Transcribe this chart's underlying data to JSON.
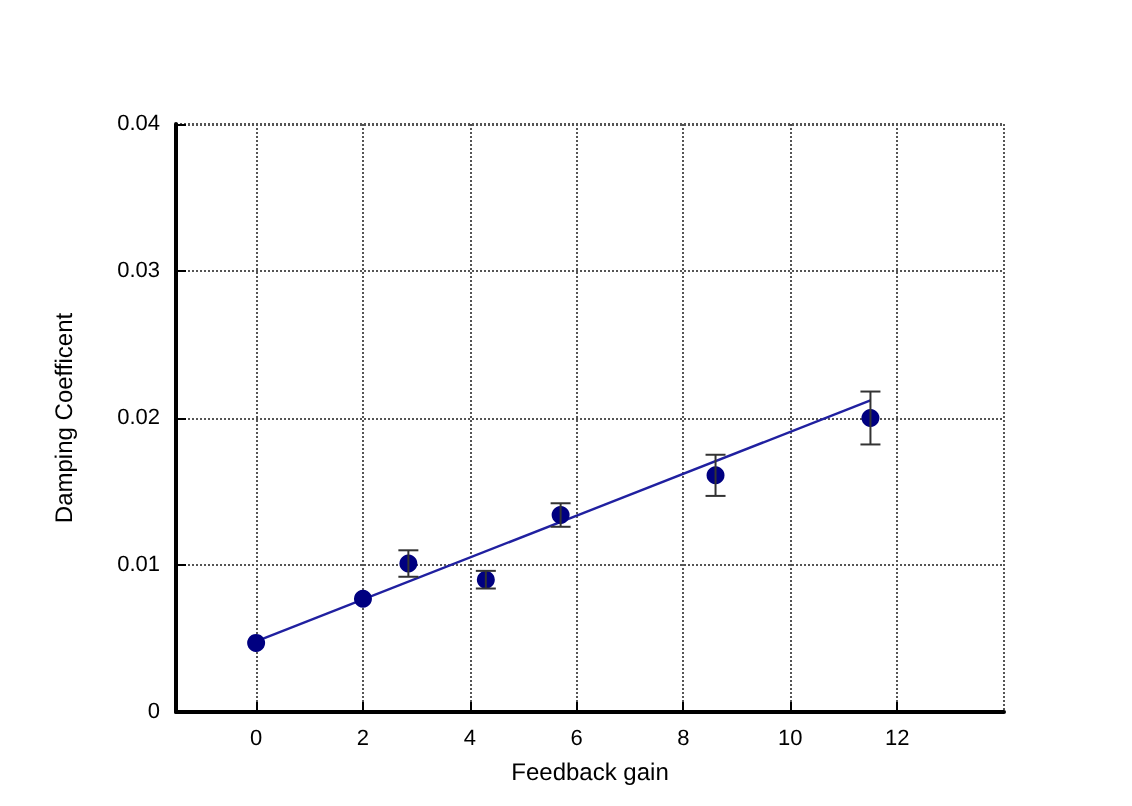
{
  "chart_data": {
    "type": "scatter",
    "xlabel": "Feedback gain",
    "ylabel": "Damping Coefficent",
    "xlim": [
      -1.5,
      14
    ],
    "xticks": [
      0,
      2,
      4,
      6,
      8,
      10,
      12
    ],
    "ylim": [
      0,
      0.04
    ],
    "yticks": [
      0,
      0.01,
      0.02,
      0.03,
      0.04
    ],
    "grid": true,
    "marker": "circle",
    "series": [
      {
        "color": "#000080",
        "x": [
          0,
          2,
          2.85,
          4.3,
          5.7,
          8.6,
          11.5
        ],
        "values": [
          0.0047,
          0.0077,
          0.0101,
          0.009,
          0.0134,
          0.0161,
          0.02
        ],
        "errors": [
          null,
          null,
          0.0009,
          0.0006,
          0.0008,
          0.0014,
          0.0018
        ]
      },
      {
        "type": "line",
        "color": "#2020a0",
        "marker": "none",
        "line_style": "solid",
        "x": [
          0,
          11.5
        ],
        "values": [
          0.0048,
          0.0212
        ]
      }
    ]
  }
}
